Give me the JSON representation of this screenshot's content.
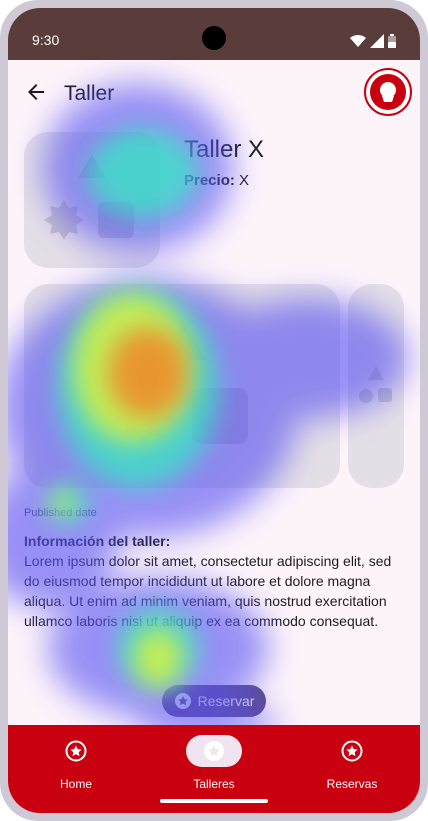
{
  "status": {
    "time": "9:30"
  },
  "header": {
    "title": "Taller"
  },
  "workshop": {
    "name": "Taller X",
    "price_label": "Precio:",
    "price_value": "X",
    "published": "Published date",
    "info_heading": "Información del taller:",
    "info_text": "Lorem ipsum dolor sit amet, consectetur adipiscing elit, sed do eiusmod tempor incididunt ut labore et dolore magna aliqua. Ut enim ad minim veniam, quis nostrud exercitation ullamco laboris nisi ut aliquip ex ea commodo consequat."
  },
  "actions": {
    "reserve": "Reservar"
  },
  "nav": {
    "items": [
      {
        "label": "Home"
      },
      {
        "label": "Talleres"
      },
      {
        "label": "Reservas"
      }
    ]
  },
  "colors": {
    "bar": "#c8000f",
    "statusbar": "#5a3d3a",
    "accent": "#5e4b8b"
  },
  "icons": {
    "logo": "granada-logo-icon",
    "placeholder": "shapes-placeholder-icon",
    "nav": "star-circle-icon"
  }
}
